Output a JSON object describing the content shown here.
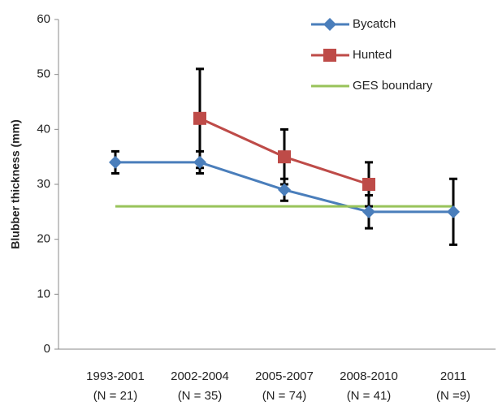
{
  "chart_data": {
    "type": "line",
    "y_label": "Blubber thickness (mm)",
    "categories": [
      "1993-2001",
      "2002-2004",
      "2005-2007",
      "2008-2010",
      "2011"
    ],
    "sample_sizes": [
      "(N = 21)",
      "(N = 35)",
      "(N = 74)",
      "(N = 41)",
      "(N =9)"
    ],
    "series": [
      {
        "name": "Bycatch",
        "color": "#4a7ebb",
        "marker": "diamond",
        "values": [
          34,
          34,
          29,
          25,
          25
        ],
        "errors": [
          2,
          2,
          2,
          3,
          6
        ]
      },
      {
        "name": "Hunted",
        "color": "#be4b48",
        "marker": "square",
        "values": [
          null,
          42,
          35,
          30,
          null
        ],
        "errors": [
          null,
          9,
          5,
          4,
          null
        ]
      },
      {
        "name": "GES boundary",
        "color": "#98c35a",
        "marker": "none",
        "values": [
          26,
          26,
          26,
          26,
          26
        ]
      }
    ],
    "ylim": [
      0,
      60
    ],
    "yticks": [
      0,
      10,
      20,
      30,
      40,
      50,
      60
    ],
    "grid": false,
    "legend": "top-right"
  }
}
